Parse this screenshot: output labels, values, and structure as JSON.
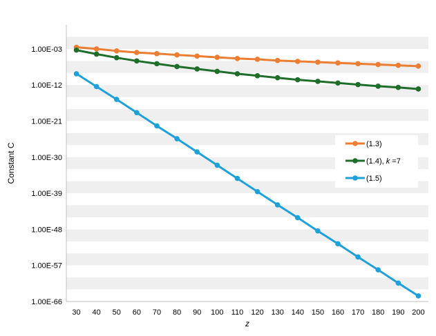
{
  "chart_data": {
    "type": "line",
    "title": "",
    "xlabel": "z",
    "ylabel": "Constant C",
    "y_scale": "log10",
    "ylim_exponent": [
      -66,
      3
    ],
    "band_step_exponent": 3,
    "categories": [
      30,
      40,
      50,
      60,
      70,
      80,
      90,
      100,
      110,
      120,
      130,
      140,
      150,
      160,
      170,
      180,
      190,
      200
    ],
    "y_tick_labels": [
      "1.00E-03",
      "1.00E-12",
      "1.00E-21",
      "1.00E-30",
      "1.00E-39",
      "1.00E-48",
      "1.00E-57",
      "1.00E-66"
    ],
    "y_tick_exponents": [
      -3,
      -12,
      -21,
      -30,
      -39,
      -48,
      -57,
      -66
    ],
    "x_tick_labels": [
      "30",
      "40",
      "50",
      "60",
      "70",
      "80",
      "90",
      "100",
      "110",
      "120",
      "130",
      "140",
      "150",
      "160",
      "170",
      "180",
      "190",
      "200"
    ],
    "series": [
      {
        "name": "(1.3)",
        "legend_prefix": "(1.3)",
        "legend_italic": "",
        "legend_suffix": "",
        "color": "#ed7d31",
        "log10_values": [
          -2.6,
          -3.0,
          -3.5,
          -3.9,
          -4.2,
          -4.5,
          -4.8,
          -5.1,
          -5.4,
          -5.6,
          -5.9,
          -6.1,
          -6.3,
          -6.5,
          -6.7,
          -6.9,
          -7.1,
          -7.3
        ]
      },
      {
        "name": "(1.4), k =7",
        "legend_prefix": "(1.4), ",
        "legend_italic": "k",
        "legend_suffix": " =7",
        "color": "#1e6e2a",
        "log10_values": [
          -3.3,
          -4.3,
          -5.2,
          -6.0,
          -6.7,
          -7.4,
          -8.0,
          -8.6,
          -9.2,
          -9.7,
          -10.2,
          -10.7,
          -11.1,
          -11.5,
          -11.9,
          -12.3,
          -12.6,
          -13.0
        ]
      },
      {
        "name": "(1.5)",
        "legend_prefix": "(1.5)",
        "legend_italic": "",
        "legend_suffix": "",
        "color": "#1ea1d8",
        "log10_values": [
          -9.2,
          -12.4,
          -15.6,
          -18.9,
          -22.2,
          -25.4,
          -28.7,
          -32.0,
          -35.3,
          -38.6,
          -41.9,
          -45.1,
          -48.4,
          -51.6,
          -54.9,
          -58.1,
          -61.4,
          -64.6
        ]
      }
    ]
  }
}
